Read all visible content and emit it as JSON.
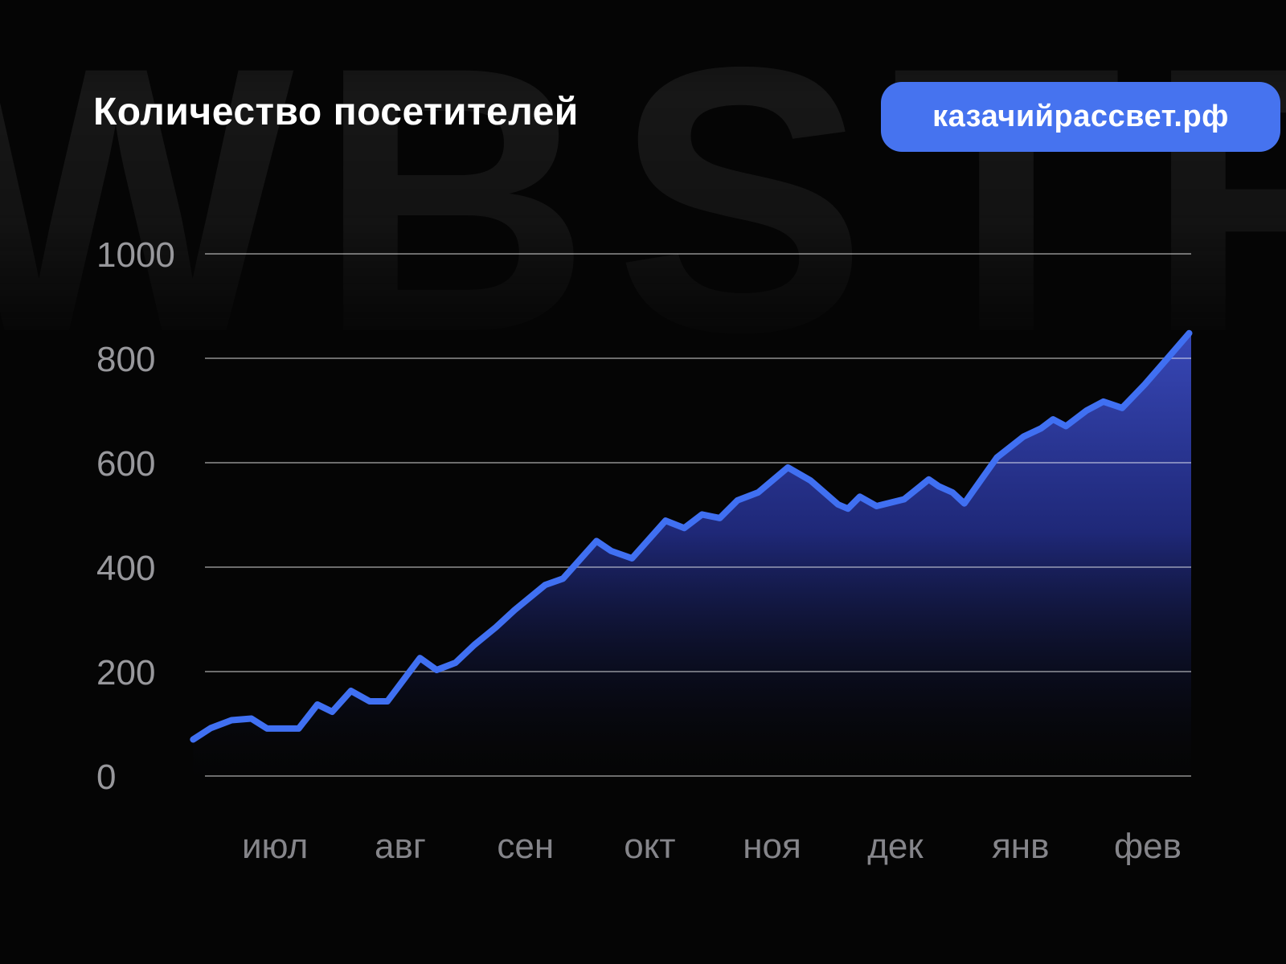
{
  "page": {
    "background": "#050505",
    "watermark": "WBSTR"
  },
  "header": {
    "title": "Количество посетителей",
    "badge": {
      "label": "казачийрассвет.рф",
      "color": "#4673EF"
    }
  },
  "chart_data": {
    "type": "area",
    "title": "Количество посетителей",
    "xlabel": "",
    "ylabel": "",
    "ylim": [
      0,
      1000
    ],
    "y_ticks": [
      0,
      200,
      400,
      600,
      800,
      1000
    ],
    "x_tick_labels": [
      "июл",
      "авг",
      "сен",
      "окт",
      "ноя",
      "дек",
      "янв",
      "фев"
    ],
    "x_tick_pct": [
      7.1,
      19.8,
      32.5,
      45.1,
      57.5,
      70.0,
      82.7,
      95.6
    ],
    "grid": true,
    "legend_position": "none",
    "series": [
      {
        "name": "Количество посетителей",
        "points": [
          [
            -1.2,
            70
          ],
          [
            0.6,
            92
          ],
          [
            2.7,
            107
          ],
          [
            4.7,
            110
          ],
          [
            6.3,
            91
          ],
          [
            9.5,
            91
          ],
          [
            11.4,
            137
          ],
          [
            12.9,
            123
          ],
          [
            14.8,
            163
          ],
          [
            16.7,
            143
          ],
          [
            18.5,
            143
          ],
          [
            21.8,
            226
          ],
          [
            23.5,
            203
          ],
          [
            25.4,
            217
          ],
          [
            27.3,
            251
          ],
          [
            29.5,
            285
          ],
          [
            31.4,
            318
          ],
          [
            34.5,
            366
          ],
          [
            36.3,
            378
          ],
          [
            39.7,
            450
          ],
          [
            41.2,
            431
          ],
          [
            43.3,
            417
          ],
          [
            46.7,
            489
          ],
          [
            48.6,
            475
          ],
          [
            50.4,
            501
          ],
          [
            52.2,
            494
          ],
          [
            54.0,
            528
          ],
          [
            56.1,
            543
          ],
          [
            59.1,
            591
          ],
          [
            61.4,
            566
          ],
          [
            64.2,
            520
          ],
          [
            65.2,
            512
          ],
          [
            66.4,
            535
          ],
          [
            68.1,
            517
          ],
          [
            70.9,
            530
          ],
          [
            73.4,
            568
          ],
          [
            74.4,
            555
          ],
          [
            75.8,
            543
          ],
          [
            77.0,
            522
          ],
          [
            80.3,
            610
          ],
          [
            83.0,
            650
          ],
          [
            84.8,
            666
          ],
          [
            86.0,
            683
          ],
          [
            87.3,
            670
          ],
          [
            89.4,
            700
          ],
          [
            91.1,
            717
          ],
          [
            93.0,
            705
          ],
          [
            95.3,
            750
          ],
          [
            97.6,
            800
          ],
          [
            99.8,
            848
          ]
        ]
      }
    ],
    "colors": {
      "line": "#4070F2",
      "fill_top": "#3848B8",
      "fill_mid": "#202A7E",
      "fill_bottom": "rgba(6,8,16,0)",
      "grid": "rgba(255,255,255,0.42)",
      "y_tick_text": "#98989C",
      "x_tick_text": "#85858A"
    }
  }
}
